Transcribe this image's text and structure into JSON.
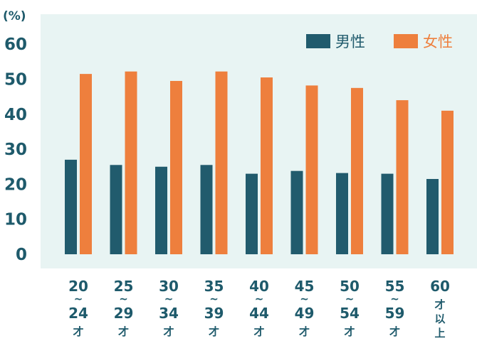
{
  "chart_data": {
    "type": "bar",
    "unit_label": "(%)",
    "ylim": [
      0,
      60
    ],
    "y_ticks": [
      "0",
      "10",
      "20",
      "30",
      "40",
      "50",
      "60"
    ],
    "grid": false,
    "legend_position": "top-right",
    "categories": [
      {
        "lines": [
          "20",
          "~",
          "24",
          "才"
        ]
      },
      {
        "lines": [
          "25",
          "~",
          "29",
          "才"
        ]
      },
      {
        "lines": [
          "30",
          "~",
          "34",
          "才"
        ]
      },
      {
        "lines": [
          "35",
          "~",
          "39",
          "才"
        ]
      },
      {
        "lines": [
          "40",
          "~",
          "44",
          "才"
        ]
      },
      {
        "lines": [
          "45",
          "~",
          "49",
          "才"
        ]
      },
      {
        "lines": [
          "50",
          "~",
          "54",
          "才"
        ]
      },
      {
        "lines": [
          "55",
          "~",
          "59",
          "才"
        ]
      },
      {
        "lines": [
          "60",
          "才",
          "以",
          "上"
        ]
      }
    ],
    "series": [
      {
        "name": "男性",
        "color": "#215b6d",
        "values": [
          27.0,
          25.5,
          25.0,
          25.5,
          23.0,
          23.8,
          23.2,
          23.0,
          21.5
        ]
      },
      {
        "name": "女性",
        "color": "#ee7f3d",
        "values": [
          51.5,
          52.2,
          49.5,
          52.2,
          50.5,
          48.2,
          47.5,
          44.0,
          41.0
        ]
      }
    ],
    "background_color": "#e8f4f3",
    "axis_text_color": "#1e5a6b"
  }
}
